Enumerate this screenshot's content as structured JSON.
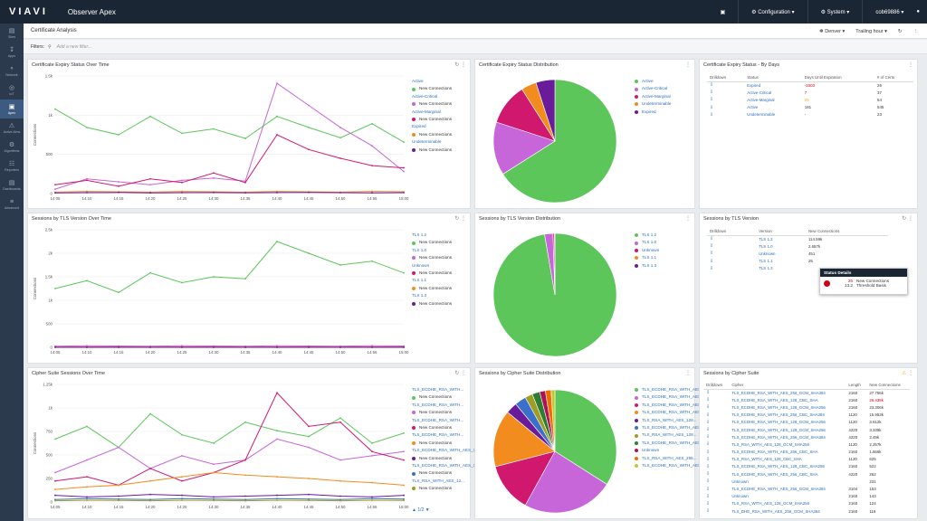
{
  "topbar": {
    "logo": "VIAVI",
    "title": "Observer Apex",
    "configuration": "Configuration",
    "system": "System",
    "user": "cob69886"
  },
  "sidebar": [
    "Sites",
    "Apps",
    "Network",
    "IoT",
    "Apex",
    "Active Alms",
    "Algorithms",
    "Reporters",
    "Dashboards",
    "Advanced"
  ],
  "subbar": {
    "page_title": "Certificate Analysis",
    "location": "Denver",
    "timerange": "Trailing hour"
  },
  "filters": {
    "label": "Filters:",
    "placeholder": "Add a new filter..."
  },
  "panels": {
    "p1": "Certificate Expiry Status Over Time",
    "p2": "Certificate Expiry Status Distribution",
    "p3": "Certificate Expiry Status - By Days",
    "p4": "Sessions by TLS Version Over Time",
    "p5": "Sessions by TLS Version Distribution",
    "p6": "Sessions by TLS Version",
    "p7": "Cipher Suite Sessions Over Time",
    "p8": "Sessions by Cipher Suite Distribution",
    "p9": "Sessions by Cipher Suite"
  },
  "axes": {
    "ylabel": "Connections",
    "times": [
      "14:05",
      "14:10",
      "14:15",
      "14:20",
      "14:25",
      "14:30",
      "14:35",
      "14:40",
      "14:45",
      "14:50",
      "14:55",
      "15:00"
    ],
    "p1_ticks": [
      "1.5k",
      "1k",
      "500",
      "0"
    ],
    "p4_ticks": [
      "2.5k",
      "2k",
      "1.5k",
      "1k",
      "500",
      "0"
    ],
    "p7_ticks": [
      "1.25k",
      "1k",
      "750",
      "500",
      "250",
      "0"
    ]
  },
  "legend1": [
    {
      "group": "Active",
      "label": "New Connections",
      "color": "#5cc65a"
    },
    {
      "group": "Active-Critical",
      "label": "New Connections",
      "color": "#c766d8"
    },
    {
      "group": "Active-Marginal",
      "label": "New Connections",
      "color": "#d1186f"
    },
    {
      "group": "Expired",
      "label": "New Connections",
      "color": "#f28c1e"
    },
    {
      "group": "Undeterminable",
      "label": "New Connections",
      "color": "#6a1b9a"
    }
  ],
  "legend2": [
    {
      "label": "Active",
      "color": "#5cc65a"
    },
    {
      "label": "Active-Critical",
      "color": "#c766d8"
    },
    {
      "label": "Active-Marginal",
      "color": "#d1186f"
    },
    {
      "label": "Undeterminable",
      "color": "#f28c1e"
    },
    {
      "label": "Expired",
      "color": "#6a1b9a"
    }
  ],
  "legend4": [
    {
      "group": "TLS 1.2",
      "label": "New Connections",
      "color": "#5cc65a"
    },
    {
      "group": "TLS 1.0",
      "label": "New Connections",
      "color": "#c766d8"
    },
    {
      "group": "Unknown",
      "label": "New Connections",
      "color": "#d1186f"
    },
    {
      "group": "TLS 1.1",
      "label": "New Connections",
      "color": "#f28c1e"
    },
    {
      "group": "TLS 1.3",
      "label": "New Connections",
      "color": "#6a1b9a"
    }
  ],
  "legend5": [
    {
      "label": "TLS 1.2",
      "color": "#5cc65a"
    },
    {
      "label": "TLS 1.0",
      "color": "#c766d8"
    },
    {
      "label": "Unknown",
      "color": "#d1186f"
    },
    {
      "label": "TLS 1.1",
      "color": "#f28c1e"
    },
    {
      "label": "TLS 1.3",
      "color": "#6a1b9a"
    }
  ],
  "legend7": [
    {
      "group": "TLS_ECDHE_RSA_WITH...",
      "label": "New Connections",
      "color": "#5cc65a"
    },
    {
      "group": "TLS_ECDHE_RSA_WITH...",
      "label": "New Connections",
      "color": "#c766d8"
    },
    {
      "group": "TLS_ECDHE_RSA_WITH...",
      "label": "New Connections",
      "color": "#d1186f"
    },
    {
      "group": "TLS_ECDHE_RSA_WITH...",
      "label": "New Connections",
      "color": "#f28c1e"
    },
    {
      "group": "TLS_ECDHE_RSA_WITH_AES_12...",
      "label": "New Connections",
      "color": "#6a1b9a"
    },
    {
      "group": "TLS_ECDHE_RSA_WITH_AES_12...",
      "label": "New Connections",
      "color": "#3a6fcc"
    },
    {
      "group": "TLS_RSA_WITH_AES_12...",
      "label": "New Connections",
      "color": "#9e9d24"
    }
  ],
  "legend8": [
    {
      "label": "TLS_ECDHE_RSA_WITH_AES...",
      "color": "#5cc65a"
    },
    {
      "label": "TLS_ECDHE_RSA_WITH_AES...",
      "color": "#c766d8"
    },
    {
      "label": "TLS_ECDHE_RSA_WITH_AES...",
      "color": "#d1186f"
    },
    {
      "label": "TLS_ECDHE_RSA_WITH_AES...",
      "color": "#f28c1e"
    },
    {
      "label": "TLS_RSA_WITH_AES_128...",
      "color": "#6a1b9a"
    },
    {
      "label": "TLS_ECDHE_RSA_WITH_AES...",
      "color": "#3a6fcc"
    },
    {
      "label": "TLS_RSA_WITH_AES_128...",
      "color": "#9e9d24"
    },
    {
      "label": "TLS_ECDHE_RSA_WITH_AES...",
      "color": "#2e7d32"
    },
    {
      "label": "Unknown",
      "color": "#ad1457"
    },
    {
      "label": "TLS_RSA_WITH_AES_256...",
      "color": "#ef6c00"
    },
    {
      "label": "TLS_ECDHE_RSA_WITH_AES...",
      "color": "#c0ca33"
    }
  ],
  "pager": "▲ 1/2 ▼",
  "table3": {
    "headers": [
      "Drilldown",
      "Status",
      "Days Until Expiration",
      "# of Certs"
    ],
    "rows": [
      {
        "status": "Expired",
        "days": "-1503",
        "days_cls": "red",
        "certs": "26"
      },
      {
        "status": "Active-Critical",
        "days": "7",
        "days_cls": "red",
        "certs": "37"
      },
      {
        "status": "Active-Marginal",
        "days": "26",
        "days_cls": "orange",
        "certs": "54"
      },
      {
        "status": "Active",
        "days": "181",
        "days_cls": "num",
        "certs": "545"
      },
      {
        "status": "Undeterminable",
        "days": "-",
        "days_cls": "num",
        "certs": "23"
      }
    ]
  },
  "table6": {
    "headers": [
      "Drilldown",
      "Version",
      "New Connections"
    ],
    "rows": [
      {
        "version": "TLS 1.2",
        "conn": "114.59k"
      },
      {
        "version": "TLS 1.0",
        "conn": "2.657k"
      },
      {
        "version": "Unknown",
        "conn": "451"
      },
      {
        "version": "TLS 1.1",
        "conn": "25"
      },
      {
        "version": "TLS 1.3",
        "conn": ""
      }
    ]
  },
  "tooltip": {
    "title": "Status Details",
    "v1": "25",
    "l1": "New Connections",
    "v2": "13.2",
    "l2": "Threshold Basis"
  },
  "table9": {
    "headers": [
      "Drilldown",
      "Cipher",
      "Length",
      "New Connections"
    ],
    "rows": [
      {
        "cipher": "TLS_ECDHE_RSA_WITH_AES_256_GCM_SHA384",
        "len": "2160",
        "conn": "27.756k",
        "cls": "num"
      },
      {
        "cipher": "TLS_ECDHE_RSA_WITH_AES_128_CBC_SHA",
        "len": "2160",
        "conn": "26.438k",
        "cls": "red"
      },
      {
        "cipher": "TLS_ECDHE_RSA_WITH_AES_128_GCM_SHA256",
        "len": "2160",
        "conn": "23.306k",
        "cls": "num"
      },
      {
        "cipher": "TLS_ECDHE_RSA_WITH_AES_256_CBC_SHA384",
        "len": "1120",
        "conn": "15.953k",
        "cls": "num"
      },
      {
        "cipher": "TLS_ECDHE_RSA_WITH_AES_128_GCM_SHA256",
        "len": "1120",
        "conn": "3.612k",
        "cls": "num"
      },
      {
        "cipher": "TLS_ECDHE_RSA_WITH_AES_128_GCM_SHA256",
        "len": "4220",
        "conn": "3.339k",
        "cls": "num"
      },
      {
        "cipher": "TLS_ECDHE_RSA_WITH_AES_256_GCM_SHA384",
        "len": "4220",
        "conn": "2.49k",
        "cls": "num"
      },
      {
        "cipher": "TLS_RSA_WITH_AES_128_GCM_SHA256",
        "len": "1120",
        "conn": "2.257k",
        "cls": "num"
      },
      {
        "cipher": "TLS_ECDHE_RSA_WITH_AES_256_CBC_SHA",
        "len": "2160",
        "conn": "1.666k",
        "cls": "num"
      },
      {
        "cipher": "TLS_RSA_WITH_AES_128_CBC_SHA",
        "len": "1120",
        "conn": "625",
        "cls": "num"
      },
      {
        "cipher": "TLS_ECDHE_RSA_WITH_AES_128_CBC_SHA256",
        "len": "2160",
        "conn": "522",
        "cls": "num"
      },
      {
        "cipher": "TLS_ECDHE_RSA_WITH_AES_256_CBC_SHA",
        "len": "4220",
        "conn": "262",
        "cls": "num"
      },
      {
        "cipher": "Unknown",
        "len": "",
        "conn": "231",
        "cls": "num"
      },
      {
        "cipher": "TLS_ECDHE_RSA_WITH_AES_256_GCM_SHA384",
        "len": "3104",
        "conn": "153",
        "cls": "num"
      },
      {
        "cipher": "Unknown",
        "len": "2160",
        "conn": "143",
        "cls": "num"
      },
      {
        "cipher": "TLS_RSA_WITH_AES_128_GCM_SHA256",
        "len": "2160",
        "conn": "124",
        "cls": "num"
      },
      {
        "cipher": "TLS_DHE_RSA_WITH_AES_256_GCM_SHA384",
        "len": "2160",
        "conn": "116",
        "cls": "num"
      }
    ]
  },
  "chart_data": [
    {
      "type": "line",
      "title": "Certificate Expiry Status Over Time",
      "ylabel": "Connections",
      "ylim": [
        0,
        1600
      ],
      "x": [
        "14:05",
        "14:10",
        "14:15",
        "14:20",
        "14:25",
        "14:30",
        "14:35",
        "14:40",
        "14:45",
        "14:50",
        "14:55",
        "15:00"
      ],
      "series": [
        {
          "name": "Active",
          "values": [
            1150,
            900,
            800,
            1050,
            820,
            880,
            750,
            1050,
            900,
            760,
            950,
            700
          ]
        },
        {
          "name": "Active-Critical",
          "values": [
            60,
            200,
            160,
            120,
            180,
            210,
            170,
            1500,
            1200,
            900,
            650,
            300
          ]
        },
        {
          "name": "Active-Marginal",
          "values": [
            120,
            180,
            100,
            200,
            150,
            280,
            150,
            800,
            600,
            480,
            380,
            350
          ]
        },
        {
          "name": "Expired",
          "values": [
            20,
            30,
            25,
            20,
            30,
            25,
            20,
            30,
            25,
            20,
            30,
            25
          ]
        },
        {
          "name": "Undeterminable",
          "values": [
            10,
            12,
            15,
            10,
            12,
            14,
            11,
            13,
            15,
            12,
            10,
            12
          ]
        }
      ]
    },
    {
      "type": "pie",
      "title": "Certificate Expiry Status Distribution",
      "categories": [
        "Active",
        "Active-Critical",
        "Active-Marginal",
        "Undeterminable",
        "Expired"
      ],
      "values": [
        66,
        14,
        11,
        4,
        5
      ]
    },
    {
      "type": "line",
      "title": "Sessions by TLS Version Over Time",
      "ylabel": "Connections",
      "ylim": [
        0,
        3000
      ],
      "x": [
        "14:05",
        "14:10",
        "14:15",
        "14:20",
        "14:25",
        "14:30",
        "14:35",
        "14:40",
        "14:45",
        "14:50",
        "14:55",
        "15:00"
      ],
      "series": [
        {
          "name": "TLS 1.2",
          "values": [
            1500,
            1700,
            1400,
            1900,
            1650,
            1800,
            1750,
            2700,
            2400,
            2100,
            2200,
            1900
          ]
        },
        {
          "name": "TLS 1.0",
          "values": [
            30,
            40,
            35,
            30,
            40,
            35,
            30,
            40,
            35,
            30,
            40,
            35
          ]
        },
        {
          "name": "Unknown",
          "values": [
            8,
            10,
            9,
            8,
            10,
            9,
            8,
            10,
            9,
            8,
            10,
            9
          ]
        },
        {
          "name": "TLS 1.1",
          "values": [
            2,
            2,
            2,
            2,
            2,
            2,
            2,
            2,
            2,
            2,
            2,
            2
          ]
        },
        {
          "name": "TLS 1.3",
          "values": [
            1,
            1,
            1,
            1,
            1,
            1,
            1,
            1,
            1,
            1,
            1,
            1
          ]
        }
      ]
    },
    {
      "type": "pie",
      "title": "Sessions by TLS Version Distribution",
      "categories": [
        "TLS 1.2",
        "TLS 1.0",
        "Unknown",
        "TLS 1.1",
        "TLS 1.3"
      ],
      "values": [
        97.3,
        2.2,
        0.4,
        0.05,
        0.05
      ]
    },
    {
      "type": "line",
      "title": "Cipher Suite Sessions Over Time",
      "ylabel": "Connections",
      "ylim": [
        0,
        1400
      ],
      "x": [
        "14:05",
        "14:10",
        "14:15",
        "14:20",
        "14:25",
        "14:30",
        "14:35",
        "14:40",
        "14:45",
        "14:50",
        "14:55",
        "15:00"
      ],
      "series": [
        {
          "name": "TLS_ECDHE_RSA_WITH...",
          "values": [
            750,
            900,
            650,
            1050,
            800,
            700,
            950,
            850,
            780,
            1000,
            700,
            820
          ]
        },
        {
          "name": "TLS_ECDHE_RSA_WITH...",
          "values": [
            350,
            500,
            650,
            400,
            550,
            450,
            500,
            750,
            650,
            500,
            550,
            600
          ]
        },
        {
          "name": "TLS_ECDHE_RSA_WITH...",
          "values": [
            250,
            300,
            200,
            400,
            250,
            350,
            500,
            1300,
            900,
            950,
            600,
            500
          ]
        },
        {
          "name": "TLS_ECDHE_RSA_WITH...",
          "values": [
            150,
            180,
            200,
            250,
            300,
            350,
            320,
            300,
            280,
            250,
            230,
            200
          ]
        },
        {
          "name": "TLS_ECDHE_RSA_WITH_AES_12...",
          "values": [
            80,
            60,
            70,
            90,
            80,
            60,
            70,
            80,
            90,
            70,
            60,
            80
          ]
        },
        {
          "name": "TLS_ECDHE_RSA_WITH_AES_12...",
          "values": [
            30,
            40,
            35,
            30,
            40,
            35,
            30,
            40,
            35,
            30,
            40,
            35
          ]
        },
        {
          "name": "TLS_RSA_WITH_AES_12...",
          "values": [
            15,
            20,
            18,
            15,
            20,
            18,
            15,
            20,
            18,
            15,
            20,
            18
          ]
        }
      ]
    },
    {
      "type": "pie",
      "title": "Sessions by Cipher Suite Distribution",
      "categories": [
        "TLS_ECDHE_RSA_WITH_AES...",
        "TLS_ECDHE_RSA_WITH_AES...",
        "TLS_ECDHE_RSA_WITH_AES...",
        "TLS_ECDHE_RSA_WITH_AES...",
        "TLS_RSA_WITH_AES_128...",
        "TLS_ECDHE_RSA_WITH_AES...",
        "TLS_RSA_WITH_AES_128...",
        "TLS_ECDHE_RSA_WITH_AES...",
        "Unknown",
        "TLS_RSA_WITH_AES_256...",
        "TLS_ECDHE_RSA_WITH_AES..."
      ],
      "values": [
        34,
        24,
        13,
        15,
        3,
        3,
        2,
        2,
        1.5,
        1.5,
        1
      ]
    }
  ]
}
